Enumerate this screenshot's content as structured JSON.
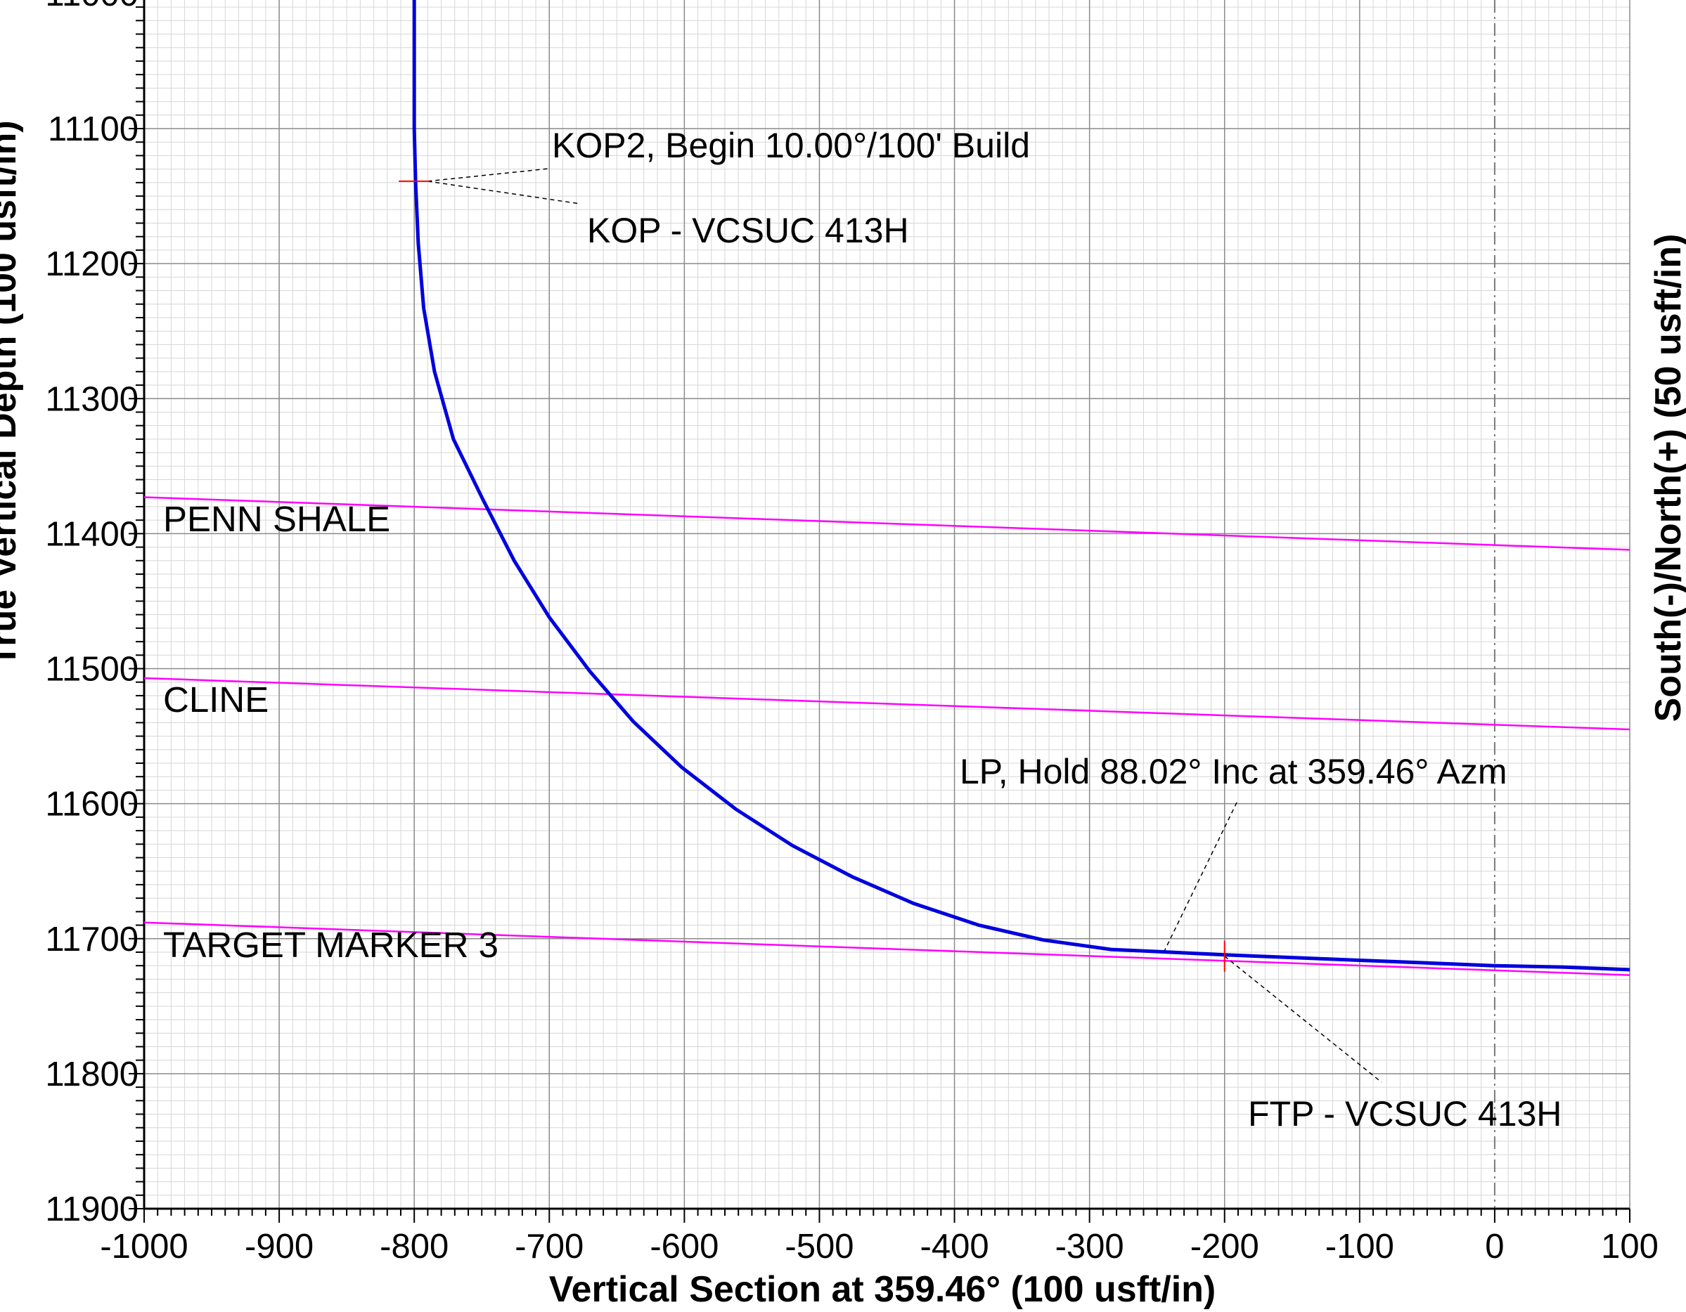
{
  "chart_data": {
    "type": "line",
    "title": "",
    "xlabel": "Vertical Section at 359.46° (100 usft/in)",
    "ylabel": "True Vertical Depth (100 usft/in)",
    "right_label": "South(-)/North(+) (50 usft/in)",
    "xlim": [
      -1000,
      100
    ],
    "ylim": [
      11900,
      10990
    ],
    "x_ticks": [
      -1000,
      -900,
      -800,
      -700,
      -600,
      -500,
      -400,
      -300,
      -200,
      -100,
      0,
      100
    ],
    "x_tick_labels": [
      "-1000",
      "-900",
      "-800",
      "-700",
      "-600",
      "-500",
      "-400",
      "-300",
      "-200",
      "-100",
      "0",
      "100"
    ],
    "y_ticks": [
      11100,
      11200,
      11300,
      11400,
      11500,
      11600,
      11700,
      11800,
      11900
    ],
    "y_tick_labels": [
      "11100",
      "11200",
      "11300",
      "11400",
      "11500",
      "11600",
      "11700",
      "11800",
      "11900"
    ],
    "grid": true,
    "reference_line_x": 0,
    "series": [
      {
        "color": "#0000dd",
        "x": [
          -800,
          -800,
          -799,
          -797,
          -793,
          -785,
          -771,
          -749,
          -726,
          -700,
          -670,
          -638,
          -602,
          -562,
          -520,
          -476,
          -430,
          -382,
          -334,
          -284,
          -240,
          -200,
          -150,
          -100,
          -50,
          0,
          50,
          100
        ],
        "y": [
          10990,
          11100,
          11140,
          11185,
          11233,
          11280,
          11330,
          11375,
          11420,
          11462,
          11502,
          11539,
          11573,
          11604,
          11631,
          11654,
          11674,
          11690,
          11701,
          11708,
          11710,
          11712,
          11714,
          11716,
          11718,
          11720,
          11721,
          11723
        ]
      }
    ],
    "formations": [
      {
        "name": "PENN SHALE",
        "color": "#ff00ff",
        "x": [
          -1000,
          100
        ],
        "y": [
          11373,
          11412
        ]
      },
      {
        "name": "CLINE",
        "color": "#ff00ff",
        "x": [
          -1000,
          100
        ],
        "y": [
          11507,
          11545
        ]
      },
      {
        "name": "TARGET MARKER 3",
        "color": "#ff00ff",
        "x": [
          -1000,
          100
        ],
        "y": [
          11688,
          11727
        ]
      }
    ],
    "annotations": [
      {
        "text": "KOP2, Begin 10.00°/100' Build",
        "x": -790,
        "y": 11139
      },
      {
        "text": "KOP - VCSUC 413H",
        "x": -790,
        "y": 11139
      },
      {
        "text": "LP, Hold 88.02° Inc at 359.46° Azm",
        "x": -245,
        "y": 11710
      },
      {
        "text": "FTP - VCSUC 413H",
        "x": -200,
        "y": 11713
      }
    ],
    "markers": [
      {
        "type": "hline",
        "x": -800,
        "y": 11139,
        "color": "#ff0000"
      },
      {
        "type": "vline",
        "x": -200,
        "y": 11713,
        "color": "#ff0000"
      }
    ]
  }
}
